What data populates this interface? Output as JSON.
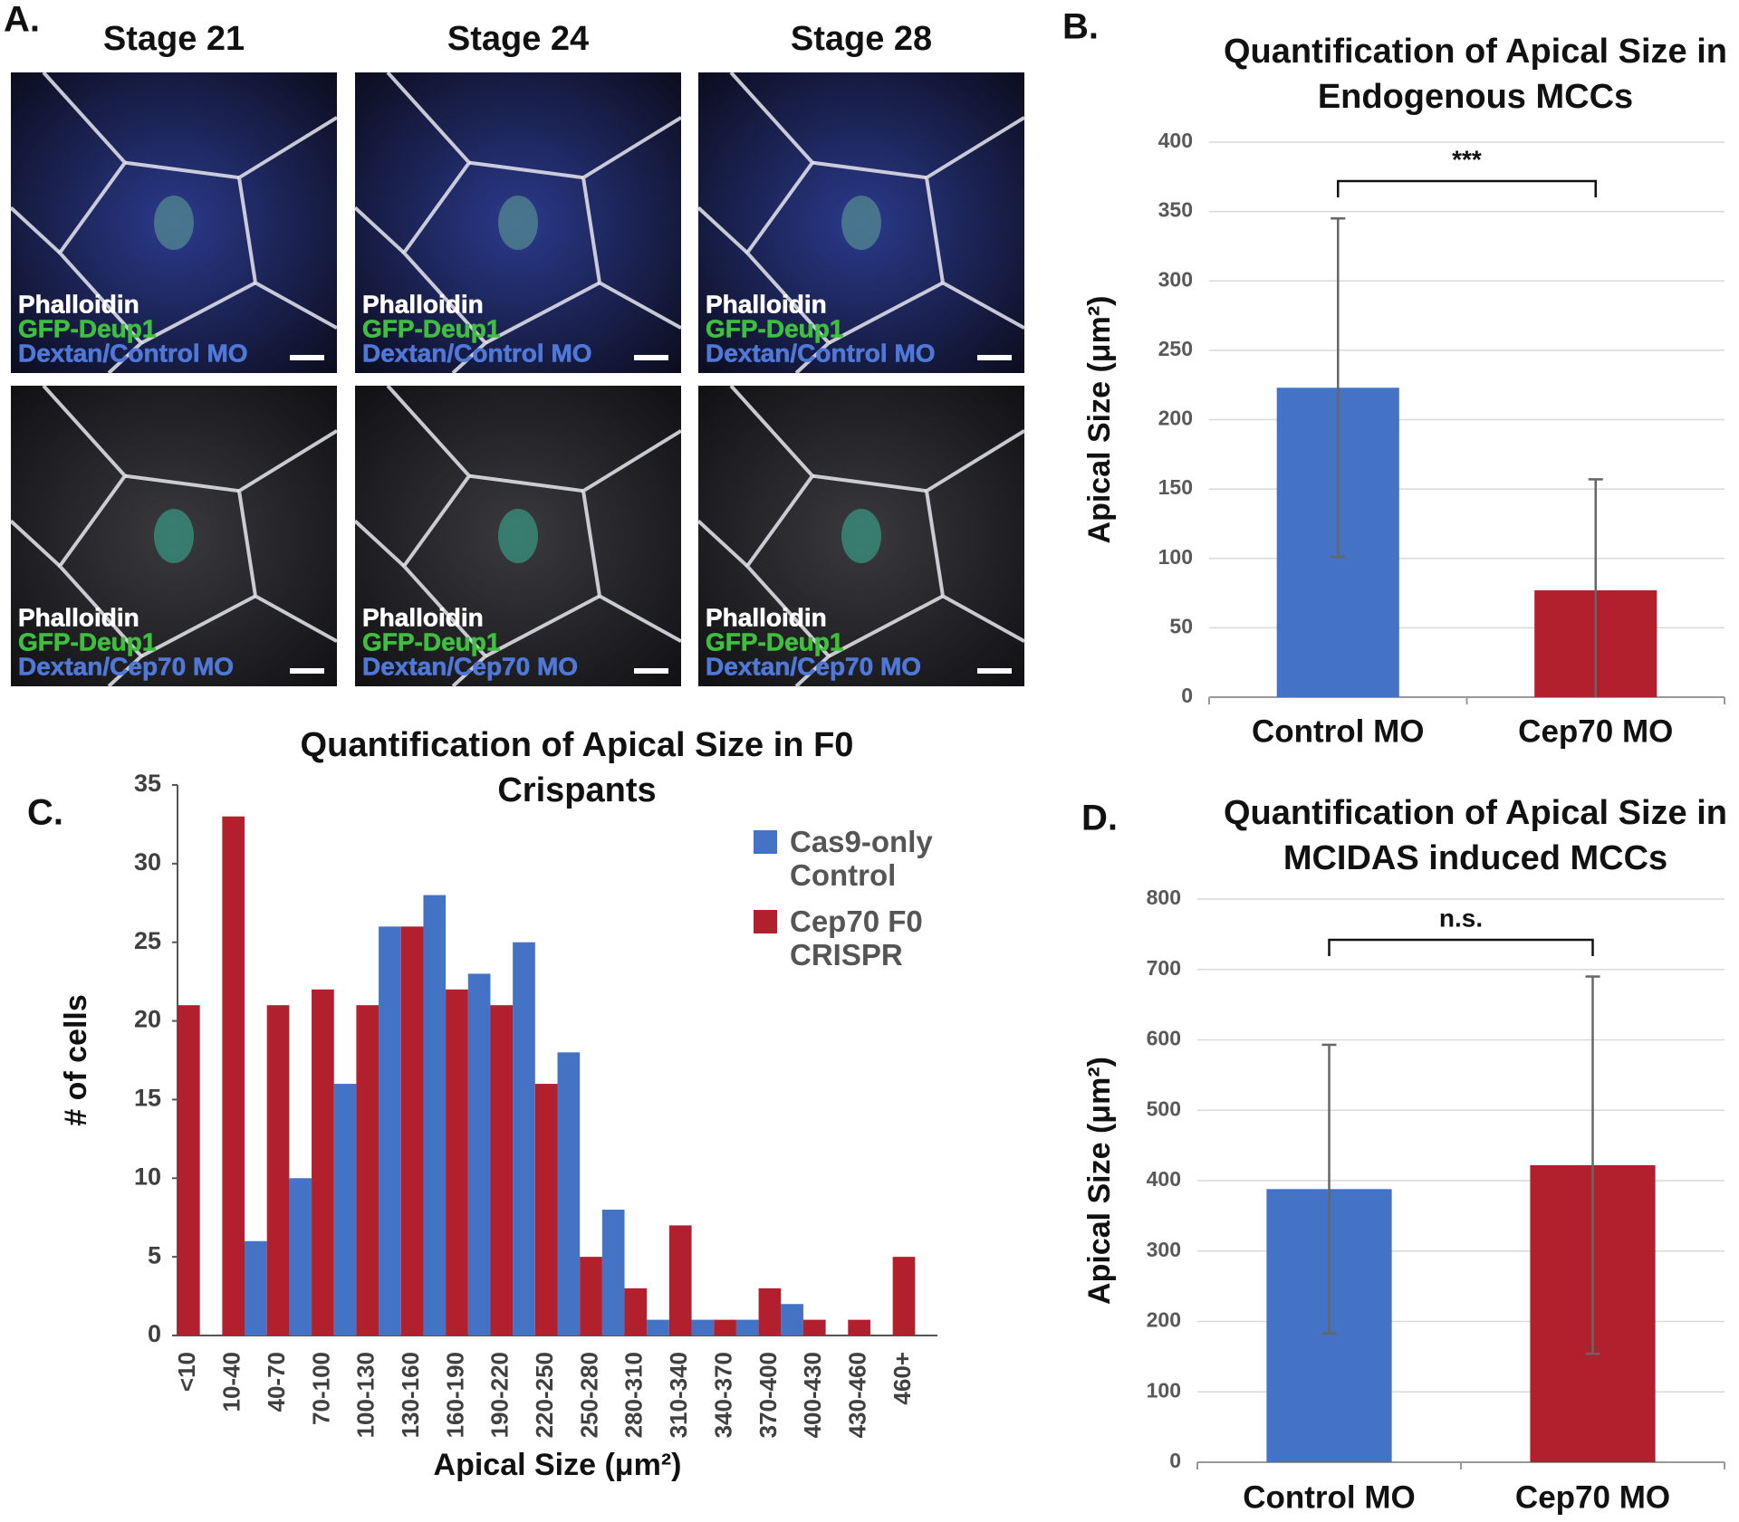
{
  "micrographs": {
    "panel_label": "A.",
    "columns": [
      "Stage 21",
      "Stage 24",
      "Stage 28"
    ],
    "images": [
      {
        "labels": [
          "Phalloidin",
          "GFP-Deup1",
          "Dextan/Control MO"
        ]
      },
      {
        "labels": [
          "Phalloidin",
          "GFP-Deup1",
          "Dextan/Control MO"
        ]
      },
      {
        "labels": [
          "Phalloidin",
          "GFP-Deup1",
          "Dextan/Control MO"
        ]
      },
      {
        "labels": [
          "Phalloidin",
          "GFP-Deup1",
          "Dextan/Cep70 MO"
        ]
      },
      {
        "labels": [
          "Phalloidin",
          "GFP-Deup1",
          "Dextan/Cep70 MO"
        ]
      },
      {
        "labels": [
          "Phalloidin",
          "GFP-Deup1",
          "Dextan/Cep70 MO"
        ]
      }
    ]
  },
  "chart_data": [
    {
      "type": "bar",
      "panel_label": "B.",
      "title": "Quantification of Apical Size in Endogenous MCCs",
      "categories": [
        "Control MO",
        "Cep70 MO"
      ],
      "values": [
        223,
        77
      ],
      "errors": [
        122,
        80
      ],
      "colors": [
        "#4472c4",
        "#b21f2d"
      ],
      "ylabel": "Apical Size (μm²)",
      "annotation": "***",
      "ylim": [
        0,
        400
      ],
      "yticks": [
        0,
        50,
        100,
        150,
        200,
        250,
        300,
        350,
        400
      ],
      "grid": true
    },
    {
      "type": "bar",
      "panel_label": "C.",
      "title": "Quantification of Apical Size in F0 Crispants",
      "categories": [
        "<10",
        "10-40",
        "40-70",
        "70-100",
        "100-130",
        "130-160",
        "160-190",
        "190-220",
        "220-250",
        "250-280",
        "280-310",
        "310-340",
        "340-370",
        "370-400",
        "400-430",
        "430-460",
        "460+"
      ],
      "series": [
        {
          "name": "Cas9-only Control",
          "color": "#4472c4",
          "values": [
            0,
            6,
            10,
            16,
            26,
            28,
            23,
            25,
            18,
            8,
            1,
            1,
            1,
            2,
            0,
            0,
            0
          ]
        },
        {
          "name": "Cep70 F0 CRISPR",
          "color": "#b21f2d",
          "values": [
            21,
            33,
            21,
            22,
            21,
            26,
            22,
            21,
            16,
            5,
            3,
            7,
            1,
            3,
            1,
            1,
            5
          ]
        }
      ],
      "xlabel": "Apical Size (μm²)",
      "ylabel": "# of cells",
      "ylim": [
        0,
        35
      ],
      "yticks": [
        0,
        5,
        10,
        15,
        20,
        25,
        30,
        35
      ],
      "grid": false
    },
    {
      "type": "bar",
      "panel_label": "D.",
      "title": "Quantification of Apical Size in MCIDAS induced MCCs",
      "categories": [
        "Control MO",
        "Cep70 MO"
      ],
      "values": [
        388,
        422
      ],
      "errors": [
        205,
        268
      ],
      "colors": [
        "#4472c4",
        "#b21f2d"
      ],
      "ylabel": "Apical Size (μm²)",
      "annotation": "n.s.",
      "ylim": [
        0,
        800
      ],
      "yticks": [
        0,
        100,
        200,
        300,
        400,
        500,
        600,
        700,
        800
      ],
      "grid": true
    }
  ]
}
